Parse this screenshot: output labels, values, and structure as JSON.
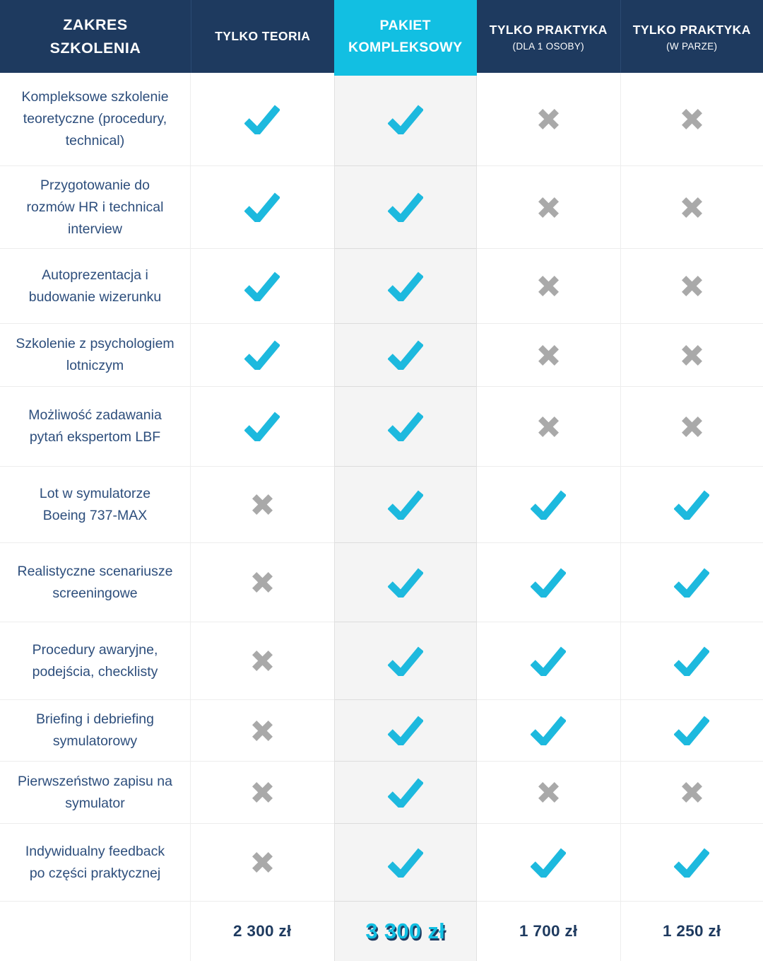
{
  "colors": {
    "navy": "#1e3a5f",
    "accent_cyan": "#12bfe2",
    "check": "#1db9de",
    "cross": "#a9a9a9",
    "feature_text": "#2d4e7c",
    "pkg_column_bg": "#f4f4f4"
  },
  "table": {
    "corner_title": "ZAKRES\nSZKOLENIA",
    "columns": [
      {
        "title": "TYLKO TEORIA",
        "subtitle": "",
        "highlight": false
      },
      {
        "title": "PAKIET\nKOMPLEKSOWY",
        "subtitle": "",
        "highlight": true
      },
      {
        "title": "TYLKO PRAKTYKA",
        "subtitle": "(DLA 1 OSOBY)",
        "highlight": false
      },
      {
        "title": "TYLKO PRAKTYKA",
        "subtitle": "(W PARZE)",
        "highlight": false
      }
    ],
    "rows": [
      {
        "label": "Kompleksowe szkolenie\nteoretyczne (procedury,\ntechnical)",
        "marks": [
          "check",
          "check",
          "cross",
          "cross"
        ]
      },
      {
        "label": "Przygotowanie do\nrozmów HR i technical\ninterview",
        "marks": [
          "check",
          "check",
          "cross",
          "cross"
        ]
      },
      {
        "label": "Autoprezentacja i\nbudowanie wizerunku",
        "marks": [
          "check",
          "check",
          "cross",
          "cross"
        ]
      },
      {
        "label": "Szkolenie z psychologiem\nlotniczym",
        "marks": [
          "check",
          "check",
          "cross",
          "cross"
        ]
      },
      {
        "label": "Możliwość zadawania\npytań ekspertom LBF",
        "marks": [
          "check",
          "check",
          "cross",
          "cross"
        ]
      },
      {
        "label": "Lot w symulatorze\nBoeing 737-MAX",
        "marks": [
          "cross",
          "check",
          "check",
          "check"
        ]
      },
      {
        "label": "Realistyczne scenariusze\nscreeningowe",
        "marks": [
          "cross",
          "check",
          "check",
          "check"
        ]
      },
      {
        "label": "Procedury awaryjne,\npodejścia, checklisty",
        "marks": [
          "cross",
          "check",
          "check",
          "check"
        ]
      },
      {
        "label": "Briefing i debriefing\nsymulatorowy",
        "marks": [
          "cross",
          "check",
          "check",
          "check"
        ]
      },
      {
        "label": "Pierwszeństwo zapisu na\nsymulator",
        "marks": [
          "cross",
          "check",
          "cross",
          "cross"
        ]
      },
      {
        "label": "Indywidualny feedback\npo części praktycznej",
        "marks": [
          "cross",
          "check",
          "check",
          "check"
        ]
      }
    ],
    "footer": {
      "prices": [
        "2 300 zł",
        "3 300 zł",
        "1 700 zł",
        "1 250 zł"
      ]
    }
  }
}
